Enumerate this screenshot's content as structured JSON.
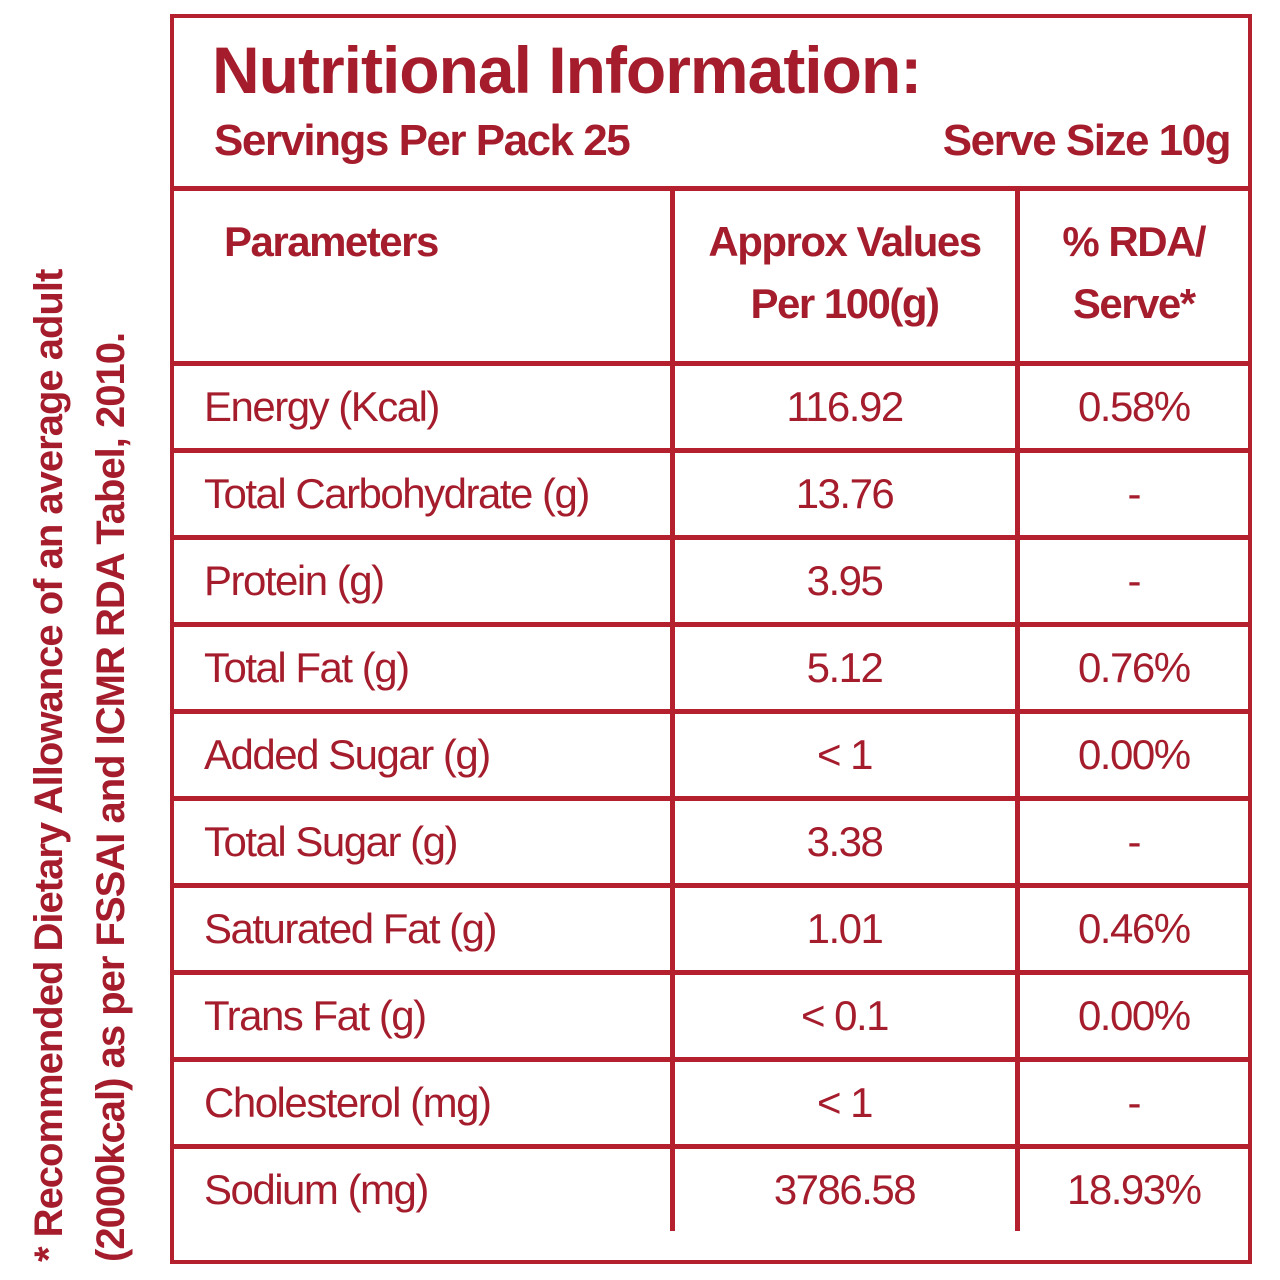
{
  "footnote": [
    "* Recommended Dietary Allowance of an average adult",
    "(2000kcal) as per FSSAI and ICMR RDA Tabel, 2010."
  ],
  "header": {
    "title": "Nutritional Information:",
    "servings": "Servings Per Pack 25",
    "serve_size": "Serve Size 10g"
  },
  "table": {
    "columns": [
      [
        "Parameters"
      ],
      [
        "Approx Values",
        "Per 100(g)"
      ],
      [
        "% RDA/",
        "Serve*"
      ]
    ],
    "rows": [
      [
        "Energy (Kcal)",
        "116.92",
        "0.58%"
      ],
      [
        "Total Carbohydrate (g)",
        "13.76",
        "-"
      ],
      [
        "Protein (g)",
        "3.95",
        "-"
      ],
      [
        "Total Fat (g)",
        "5.12",
        "0.76%"
      ],
      [
        "Added Sugar (g)",
        "< 1",
        "0.00%"
      ],
      [
        "Total Sugar (g)",
        "3.38",
        "-"
      ],
      [
        "Saturated Fat (g)",
        "1.01",
        "0.46%"
      ],
      [
        "Trans Fat (g)",
        "< 0.1",
        "0.00%"
      ],
      [
        "Cholesterol (mg)",
        "< 1",
        "-"
      ],
      [
        "Sodium (mg)",
        "3786.58",
        "18.93%"
      ]
    ]
  }
}
